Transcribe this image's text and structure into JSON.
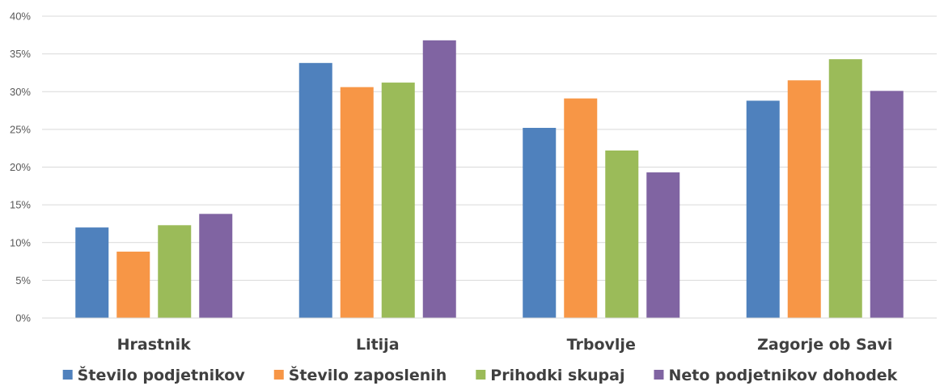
{
  "chart_data": {
    "type": "bar",
    "categories": [
      "Hrastnik",
      "Litija",
      "Trbovlje",
      "Zagorje ob Savi"
    ],
    "series": [
      {
        "name": "Število podjetnikov",
        "color": "#4F81BD",
        "values": [
          12.0,
          33.8,
          25.2,
          28.8
        ]
      },
      {
        "name": "Število zaposlenih",
        "color": "#F79646",
        "values": [
          8.8,
          30.6,
          29.1,
          31.5
        ]
      },
      {
        "name": "Prihodki skupaj",
        "color": "#9BBB59",
        "values": [
          12.3,
          31.2,
          22.2,
          34.3
        ]
      },
      {
        "name": "Neto podjetnikov dohodek",
        "color": "#8064A2",
        "values": [
          13.8,
          36.8,
          19.3,
          30.1
        ]
      }
    ],
    "y_ticks": [
      "0%",
      "5%",
      "10%",
      "15%",
      "20%",
      "25%",
      "30%",
      "35%",
      "40%"
    ],
    "ylim": [
      0,
      40
    ],
    "y_unit": "%",
    "grid": true,
    "legend_position": "bottom",
    "title": "",
    "xlabel": "",
    "ylabel": ""
  }
}
